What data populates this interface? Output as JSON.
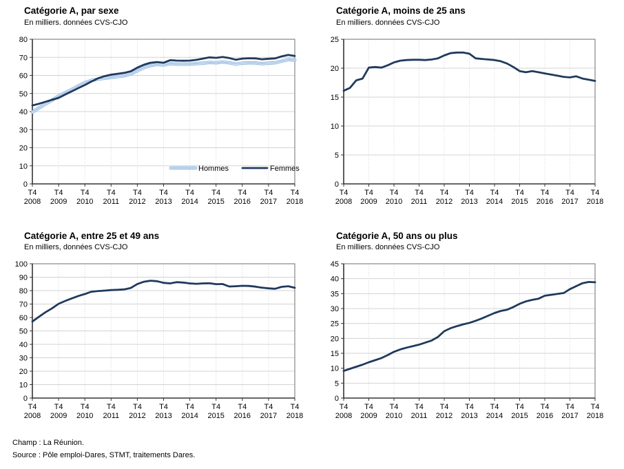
{
  "page": {
    "footer": {
      "champ": "Champ : La Réunion.",
      "source": "Source : Pôle emploi-Dares, STMT, traitements Dares."
    }
  },
  "colors": {
    "navy": "#1F3A5C",
    "light_blue": "#8CB3DE",
    "grid": "#D3D3D3",
    "box": "#6E6E6E",
    "axis": "#333333"
  },
  "charts": [
    {
      "title": "Catégorie A, par sexe",
      "subtitle": "En milliers. données CVS-CJO",
      "chart_data": {
        "type": "line",
        "x_tick_prefix": "T4",
        "x_years": [
          "2008",
          "2009",
          "2010",
          "2011",
          "2012",
          "2013",
          "2014",
          "2015",
          "2016",
          "2017",
          "2018"
        ],
        "ylim": [
          0,
          80
        ],
        "ystep": 10,
        "grid": true,
        "legend": true,
        "legend_position": "inside-bottom",
        "series": [
          {
            "name": "Hommes",
            "color": "#8CB3DE",
            "line_style": "double",
            "values": [
              39.7,
              42.0,
              44.2,
              46.3,
              48.6,
              50.4,
              52.2,
              54.2,
              56.0,
              57.2,
              58.0,
              58.4,
              58.9,
              59.3,
              59.8,
              60.8,
              62.6,
              64.3,
              65.5,
              66.1,
              65.8,
              66.5,
              66.3,
              66.2,
              66.3,
              66.5,
              66.8,
              67.2,
              67.0,
              67.4,
              67.0,
              66.4,
              66.8,
              67.0,
              66.9,
              66.5,
              66.8,
              67.0,
              67.9,
              68.8,
              68.4
            ]
          },
          {
            "name": "Femmes",
            "color": "#1F3A5C",
            "line_style": "solid",
            "values": [
              43.4,
              44.3,
              45.4,
              46.5,
              47.6,
              49.4,
              51.2,
              53.0,
              54.7,
              56.6,
              58.4,
              59.6,
              60.4,
              60.9,
              61.4,
              62.3,
              64.3,
              65.9,
              67.0,
              67.4,
              67.0,
              68.4,
              68.2,
              68.1,
              68.2,
              68.6,
              69.3,
              70.0,
              69.7,
              70.2,
              69.6,
              68.7,
              69.3,
              69.5,
              69.4,
              68.9,
              69.2,
              69.4,
              70.5,
              71.3,
              70.8
            ]
          }
        ]
      }
    },
    {
      "title": "Catégorie A, moins de 25 ans",
      "subtitle": "En milliers. données CVS-CJO",
      "chart_data": {
        "type": "line",
        "x_tick_prefix": "T4",
        "x_years": [
          "2008",
          "2009",
          "2010",
          "2011",
          "2012",
          "2013",
          "2014",
          "2015",
          "2016",
          "2017",
          "2018"
        ],
        "ylim": [
          0,
          25
        ],
        "ystep": 5,
        "grid": true,
        "legend": false,
        "series": [
          {
            "color": "#1F3A5C",
            "line_style": "solid",
            "values": [
              16.1,
              16.6,
              17.9,
              18.2,
              20.1,
              20.2,
              20.1,
              20.5,
              21.0,
              21.3,
              21.4,
              21.45,
              21.45,
              21.4,
              21.5,
              21.7,
              22.2,
              22.6,
              22.7,
              22.7,
              22.5,
              21.7,
              21.6,
              21.5,
              21.4,
              21.2,
              20.8,
              20.2,
              19.5,
              19.3,
              19.5,
              19.3,
              19.1,
              18.9,
              18.7,
              18.5,
              18.4,
              18.6,
              18.2,
              18.0,
              17.8
            ]
          }
        ]
      }
    },
    {
      "title": "Catégorie A, entre 25 et 49 ans",
      "subtitle": "En milliers, données CVS-CJO",
      "chart_data": {
        "type": "line",
        "x_tick_prefix": "T4",
        "x_years": [
          "2008",
          "2009",
          "2010",
          "2011",
          "2012",
          "2013",
          "2014",
          "2015",
          "2016",
          "2017",
          "2018"
        ],
        "ylim": [
          0,
          100
        ],
        "ystep": 10,
        "grid": true,
        "legend": false,
        "series": [
          {
            "color": "#1F3A5C",
            "line_style": "solid",
            "values": [
              57.0,
              60.5,
              63.9,
              66.8,
              70.2,
              72.3,
              74.2,
              76.0,
              77.5,
              79.2,
              79.7,
              80.0,
              80.4,
              80.6,
              80.9,
              82.0,
              84.9,
              86.6,
              87.4,
              87.0,
              85.8,
              85.4,
              86.3,
              86.0,
              85.4,
              85.1,
              85.4,
              85.5,
              84.8,
              84.9,
              83.1,
              83.3,
              83.6,
              83.5,
              83.0,
              82.2,
              81.7,
              81.4,
              82.8,
              83.3,
              82.1
            ]
          }
        ]
      }
    },
    {
      "title": "Catégorie A, 50 ans ou plus",
      "subtitle": "En milliers. données CVS-CJO",
      "chart_data": {
        "type": "line",
        "x_tick_prefix": "T4",
        "x_years": [
          "2008",
          "2009",
          "2010",
          "2011",
          "2012",
          "2013",
          "2014",
          "2015",
          "2016",
          "2017",
          "2018"
        ],
        "ylim": [
          0,
          45
        ],
        "ystep": 5,
        "grid": true,
        "legend": false,
        "series": [
          {
            "color": "#1F3A5C",
            "line_style": "solid",
            "values": [
              9.1,
              9.8,
              10.5,
              11.2,
              12.0,
              12.7,
              13.4,
              14.4,
              15.5,
              16.3,
              16.9,
              17.4,
              17.9,
              18.6,
              19.3,
              20.5,
              22.4,
              23.4,
              24.1,
              24.7,
              25.2,
              25.9,
              26.7,
              27.6,
              28.5,
              29.2,
              29.6,
              30.5,
              31.6,
              32.4,
              32.9,
              33.3,
              34.3,
              34.6,
              34.9,
              35.2,
              36.5,
              37.5,
              38.5,
              38.9,
              38.8
            ]
          }
        ]
      }
    }
  ]
}
